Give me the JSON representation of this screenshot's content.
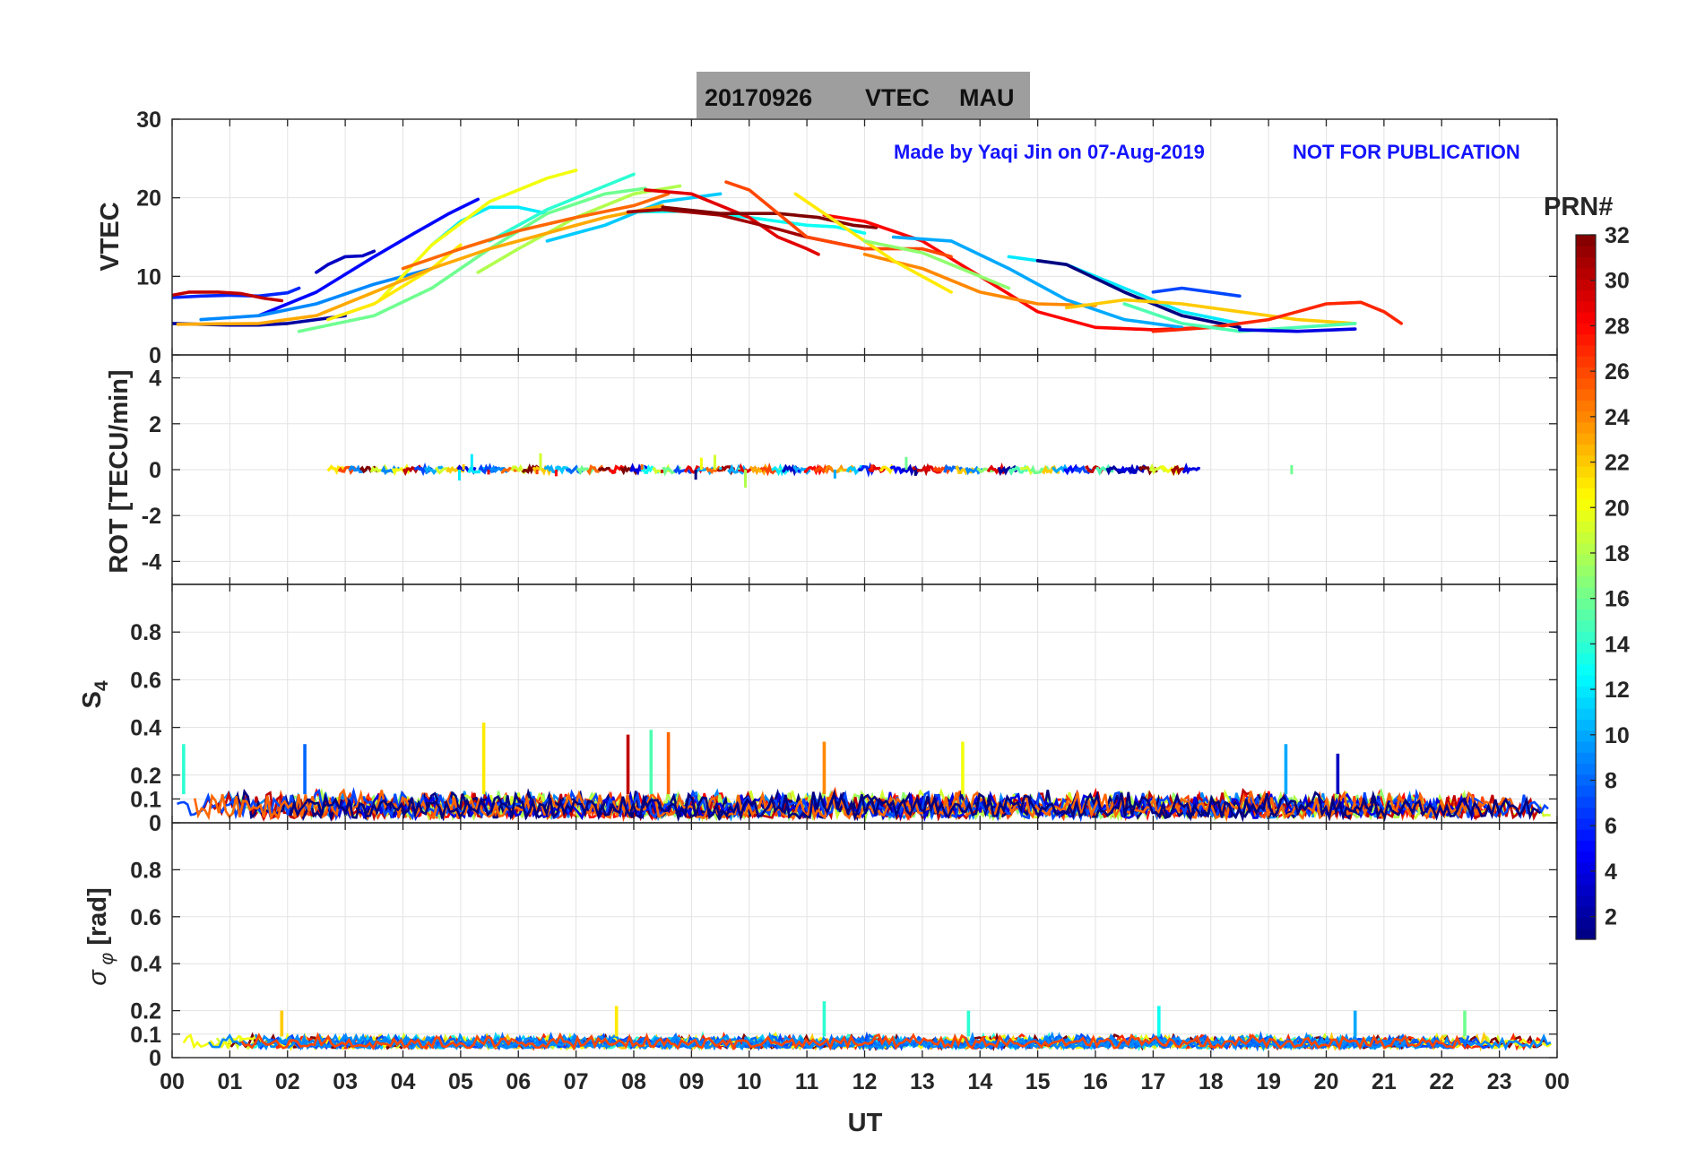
{
  "title": {
    "date": "20170926",
    "quantity": "VTEC",
    "station": "MAU"
  },
  "annotations": {
    "made_by": "Made by Yaqi Jin on 07-Aug-2019",
    "notice": "NOT FOR PUBLICATION"
  },
  "xlabel": "UT",
  "colorbar": {
    "label": "PRN#",
    "range": [
      1,
      32
    ],
    "ticks": [
      "2",
      "4",
      "6",
      "8",
      "10",
      "12",
      "14",
      "16",
      "18",
      "20",
      "22",
      "24",
      "26",
      "28",
      "30",
      "32"
    ],
    "colormap": "jet"
  },
  "x_ticks": [
    "00",
    "01",
    "02",
    "03",
    "04",
    "05",
    "06",
    "07",
    "08",
    "09",
    "10",
    "11",
    "12",
    "13",
    "14",
    "15",
    "16",
    "17",
    "18",
    "19",
    "20",
    "21",
    "22",
    "23",
    "00"
  ],
  "chart_data": [
    {
      "type": "line",
      "name": "vtec",
      "ylabel": "VTEC",
      "xlim": [
        0,
        24
      ],
      "ylim": [
        0,
        30
      ],
      "y_ticks": [
        "0",
        "10",
        "20",
        "30"
      ],
      "grid": true,
      "series": [
        {
          "prn": 2,
          "x": [
            0.0,
            0.5,
            1.0,
            1.5,
            2.0,
            2.5,
            3.0
          ],
          "y": [
            4.0,
            3.9,
            3.8,
            3.8,
            4.0,
            4.5,
            5.0
          ]
        },
        {
          "prn": 3,
          "x": [
            2.5,
            2.7,
            3.0,
            3.3,
            3.5
          ],
          "y": [
            10.5,
            11.5,
            12.5,
            12.6,
            13.2
          ]
        },
        {
          "prn": 5,
          "x": [
            1.5,
            2.5,
            3.5,
            4.2,
            4.8,
            5.3
          ],
          "y": [
            5.0,
            8.0,
            12.5,
            15.5,
            18.0,
            19.8
          ]
        },
        {
          "prn": 6,
          "x": [
            0.0,
            0.5,
            1.0,
            1.5,
            2.0,
            2.2
          ],
          "y": [
            7.3,
            7.5,
            7.6,
            7.5,
            7.9,
            8.5
          ]
        },
        {
          "prn": 9,
          "x": [
            0.5,
            1.5,
            2.5,
            3.5,
            4.5
          ],
          "y": [
            4.5,
            5.0,
            6.5,
            9.0,
            11.0
          ]
        },
        {
          "prn": 12,
          "x": [
            4.5,
            5.0,
            5.5,
            6.0,
            6.5
          ],
          "y": [
            14.0,
            17.0,
            18.8,
            18.8,
            18.0
          ]
        },
        {
          "prn": 11,
          "x": [
            6.5,
            7.5,
            8.5,
            9.5
          ],
          "y": [
            14.5,
            16.5,
            19.5,
            20.5
          ]
        },
        {
          "prn": 14,
          "x": [
            5.5,
            6.5,
            7.0,
            7.5,
            8.0
          ],
          "y": [
            14.5,
            18.5,
            20.0,
            21.5,
            23.0
          ]
        },
        {
          "prn": 16,
          "x": [
            2.2,
            3.5,
            4.5,
            5.5,
            6.5,
            7.5,
            8.2
          ],
          "y": [
            3.0,
            5.0,
            8.5,
            13.5,
            18.0,
            20.5,
            21.2
          ]
        },
        {
          "prn": 18,
          "x": [
            5.3,
            6.0,
            7.0,
            8.0,
            8.8
          ],
          "y": [
            10.5,
            13.5,
            17.5,
            20.5,
            21.5
          ]
        },
        {
          "prn": 20,
          "x": [
            3.6,
            4.5,
            5.5,
            6.5,
            7.0
          ],
          "y": [
            7.0,
            14.0,
            19.5,
            22.5,
            23.5
          ]
        },
        {
          "prn": 21,
          "x": [
            2.7,
            3.5,
            4.5,
            5.0
          ],
          "y": [
            4.5,
            6.5,
            11.0,
            14.0
          ]
        },
        {
          "prn": 23,
          "x": [
            0.1,
            1.5,
            2.5,
            3.5,
            4.5,
            5.5,
            6.5,
            7.5,
            8.5
          ],
          "y": [
            3.9,
            4.0,
            5.0,
            8.0,
            11.0,
            13.5,
            15.5,
            17.5,
            19.0
          ]
        },
        {
          "prn": 25,
          "x": [
            4.0,
            5.0,
            6.0,
            7.0,
            8.0,
            8.6
          ],
          "y": [
            11.0,
            13.5,
            15.8,
            17.5,
            19.0,
            20.5
          ]
        },
        {
          "prn": 13,
          "x": [
            8.0,
            9.0,
            10.0,
            11.0,
            11.5,
            12.0
          ],
          "y": [
            18.2,
            18.3,
            17.5,
            16.5,
            16.3,
            15.5
          ]
        },
        {
          "prn": 30,
          "x": [
            0.0,
            0.3,
            0.8,
            1.2,
            1.6,
            1.9
          ],
          "y": [
            7.6,
            8.0,
            8.0,
            7.8,
            7.2,
            6.9
          ]
        },
        {
          "prn": 29,
          "x": [
            8.2,
            9.0,
            10.0,
            10.5,
            11.0,
            11.2
          ],
          "y": [
            21.0,
            20.5,
            17.5,
            15.0,
            13.5,
            12.8
          ]
        },
        {
          "prn": 31,
          "x": [
            7.9,
            8.5,
            9.5,
            10.5,
            11.0,
            12.0
          ],
          "y": [
            18.2,
            18.5,
            17.8,
            16.0,
            15.0,
            13.5
          ]
        },
        {
          "prn": 32,
          "x": [
            8.5,
            9.5,
            10.5,
            11.2,
            11.8,
            12.2
          ],
          "y": [
            18.8,
            18.0,
            18.0,
            17.5,
            16.5,
            16.2
          ]
        },
        {
          "prn": 28,
          "x": [
            11.3,
            12.0,
            13.0,
            14.0,
            15.0,
            16.0,
            17.0,
            18.0
          ],
          "y": [
            17.8,
            17.0,
            14.5,
            10.0,
            5.5,
            3.5,
            3.2,
            3.5
          ]
        },
        {
          "prn": 26,
          "x": [
            9.6,
            10.0,
            11.0,
            12.0,
            13.0,
            13.5
          ],
          "y": [
            22.0,
            21.0,
            15.0,
            13.5,
            13.5,
            12.5
          ]
        },
        {
          "prn": 24,
          "x": [
            12.0,
            13.0,
            14.0,
            15.0,
            16.0
          ],
          "y": [
            12.8,
            11.0,
            8.0,
            6.5,
            6.3
          ]
        },
        {
          "prn": 21,
          "x": [
            10.8,
            11.5,
            12.5,
            13.5
          ],
          "y": [
            20.5,
            17.0,
            12.0,
            8.0
          ]
        },
        {
          "prn": 17,
          "x": [
            12.0,
            13.0,
            14.0,
            14.5
          ],
          "y": [
            14.5,
            13.0,
            10.0,
            8.5
          ]
        },
        {
          "prn": 10,
          "x": [
            12.5,
            13.5,
            14.5,
            15.5,
            16.5,
            17.5
          ],
          "y": [
            15.0,
            14.5,
            11.0,
            7.0,
            4.5,
            3.5
          ]
        },
        {
          "prn": 12,
          "x": [
            14.5,
            15.5,
            16.5,
            17.5,
            18.5
          ],
          "y": [
            12.5,
            11.5,
            8.5,
            5.5,
            4.0
          ]
        },
        {
          "prn": 1,
          "x": [
            15.0,
            15.5,
            16.5,
            17.5,
            18.5
          ],
          "y": [
            12.0,
            11.5,
            8.0,
            5.0,
            3.5
          ]
        },
        {
          "prn": 22,
          "x": [
            15.5,
            16.5,
            17.5,
            18.5,
            19.5,
            20.5
          ],
          "y": [
            6.0,
            7.0,
            6.5,
            5.5,
            4.5,
            4.0
          ]
        },
        {
          "prn": 27,
          "x": [
            17.0,
            18.0,
            19.0,
            19.5,
            20.0,
            20.6,
            21.0,
            21.3
          ],
          "y": [
            3.0,
            3.5,
            4.5,
            5.5,
            6.5,
            6.7,
            5.5,
            4.0
          ]
        },
        {
          "prn": 15,
          "x": [
            16.5,
            17.5,
            18.5,
            19.5,
            20.5
          ],
          "y": [
            6.5,
            4.0,
            3.0,
            3.5,
            4.0
          ]
        },
        {
          "prn": 7,
          "x": [
            17.0,
            17.5,
            18.0,
            18.5
          ],
          "y": [
            8.0,
            8.5,
            8.0,
            7.5
          ]
        },
        {
          "prn": 4,
          "x": [
            18.5,
            19.5,
            20.5
          ],
          "y": [
            3.2,
            3.0,
            3.3
          ]
        }
      ]
    },
    {
      "type": "scatter",
      "name": "rot",
      "ylabel": "ROT [TECU/min]",
      "xlim": [
        0,
        24
      ],
      "ylim": [
        -5,
        5
      ],
      "y_ticks": [
        "-4",
        "-2",
        "0",
        "2",
        "4"
      ],
      "grid": true,
      "envelope": {
        "x_range": [
          2.7,
          17.7
        ],
        "typical_abs": 0.3,
        "max_abs": 0.8
      },
      "isolated_points": [
        {
          "x": 19.4,
          "y": 0.0,
          "prn": 16
        }
      ]
    },
    {
      "type": "scatter",
      "name": "s4",
      "ylabel": "S4",
      "xlim": [
        0,
        24
      ],
      "ylim": [
        0,
        1
      ],
      "y_ticks": [
        "0",
        "0.1",
        "0.2",
        "0.4",
        "0.6",
        "0.8"
      ],
      "grid": true,
      "baseline_range": [
        0.02,
        0.12
      ],
      "spikes": [
        {
          "x": 0.2,
          "y": 0.33
        },
        {
          "x": 2.3,
          "y": 0.33
        },
        {
          "x": 5.4,
          "y": 0.42
        },
        {
          "x": 7.9,
          "y": 0.37
        },
        {
          "x": 8.3,
          "y": 0.39
        },
        {
          "x": 8.6,
          "y": 0.38
        },
        {
          "x": 11.3,
          "y": 0.34
        },
        {
          "x": 13.7,
          "y": 0.34
        },
        {
          "x": 19.3,
          "y": 0.33
        },
        {
          "x": 20.2,
          "y": 0.29
        }
      ]
    },
    {
      "type": "scatter",
      "name": "sigma_phi",
      "ylabel": "σ φ [rad]",
      "xlim": [
        0,
        24
      ],
      "ylim": [
        0,
        1
      ],
      "y_ticks": [
        "0",
        "0.1",
        "0.2",
        "0.4",
        "0.6",
        "0.8"
      ],
      "grid": true,
      "baseline_range": [
        0.04,
        0.09
      ],
      "spikes": [
        {
          "x": 1.9,
          "y": 0.2
        },
        {
          "x": 7.7,
          "y": 0.22
        },
        {
          "x": 11.3,
          "y": 0.24
        },
        {
          "x": 13.8,
          "y": 0.2
        },
        {
          "x": 17.1,
          "y": 0.22
        },
        {
          "x": 20.5,
          "y": 0.2
        },
        {
          "x": 22.4,
          "y": 0.2
        }
      ]
    }
  ]
}
